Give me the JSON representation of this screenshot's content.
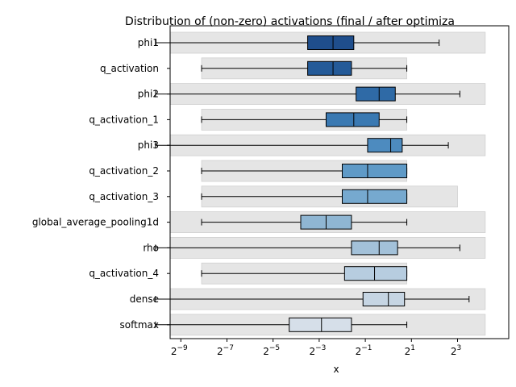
{
  "chart_data": {
    "type": "boxplot",
    "title": "Distribution of (non-zero) activations (final / after optimiza",
    "xlabel": "x",
    "xscale": "log2",
    "xlim_log2": [
      -10.5,
      4.2
    ],
    "x_ticks": [
      {
        "base": "2",
        "exp": "−9",
        "value": -9
      },
      {
        "base": "2",
        "exp": "−7",
        "value": -7
      },
      {
        "base": "2",
        "exp": "−5",
        "value": -5
      },
      {
        "base": "2",
        "exp": "−3",
        "value": -3
      },
      {
        "base": "2",
        "exp": "−1",
        "value": -1
      },
      {
        "base": "2",
        "exp": "1",
        "value": 1
      },
      {
        "base": "2",
        "exp": "3",
        "value": 3
      }
    ],
    "grid": false,
    "legend": "none",
    "colors": {
      "range_band": "#e5e5e5",
      "range_band_edge": "#d0d0d0",
      "whisker": "#000000"
    },
    "series": [
      {
        "name": "phi1",
        "range_log2": [
          -10.1,
          4.2
        ],
        "whisker_low": -10.1,
        "q1": -3.5,
        "median": -2.4,
        "q3": -1.5,
        "whisker_high": 2.2,
        "color": "#1f4e8c"
      },
      {
        "name": "q_activation",
        "range_log2": [
          -8.1,
          0.8
        ],
        "whisker_low": -8.1,
        "q1": -3.5,
        "median": -2.4,
        "q3": -1.6,
        "whisker_high": 0.8,
        "color": "#245a98"
      },
      {
        "name": "phi2",
        "range_log2": [
          -10.1,
          4.2
        ],
        "whisker_low": -10.1,
        "q1": -1.4,
        "median": -0.4,
        "q3": 0.3,
        "whisker_high": 3.1,
        "color": "#2f6aa6"
      },
      {
        "name": "q_activation_1",
        "range_log2": [
          -8.1,
          0.8
        ],
        "whisker_low": -8.1,
        "q1": -2.7,
        "median": -1.5,
        "q3": -0.4,
        "whisker_high": 0.8,
        "color": "#3a79b2"
      },
      {
        "name": "phi3",
        "range_log2": [
          -10.1,
          4.2
        ],
        "whisker_low": -10.1,
        "q1": -0.9,
        "median": 0.1,
        "q3": 0.6,
        "whisker_high": 2.6,
        "color": "#4d8bbf"
      },
      {
        "name": "q_activation_2",
        "range_log2": [
          -8.1,
          0.8
        ],
        "whisker_low": -8.1,
        "q1": -2.0,
        "median": -0.9,
        "q3": 0.8,
        "whisker_high": 0.8,
        "color": "#5f9ac7"
      },
      {
        "name": "q_activation_3",
        "range_log2": [
          -8.1,
          3.0
        ],
        "whisker_low": -8.1,
        "q1": -2.0,
        "median": -0.9,
        "q3": 0.8,
        "whisker_high": 0.8,
        "color": "#76a9cf"
      },
      {
        "name": "global_average_pooling1d",
        "range_log2": [
          -10.1,
          4.2
        ],
        "whisker_low": -8.1,
        "q1": -3.8,
        "median": -2.7,
        "q3": -1.6,
        "whisker_high": 0.8,
        "color": "#8fb6d3"
      },
      {
        "name": "rho",
        "range_log2": [
          -10.1,
          4.2
        ],
        "whisker_low": -10.1,
        "q1": -1.6,
        "median": -0.4,
        "q3": 0.4,
        "whisker_high": 3.1,
        "color": "#a3c1d9"
      },
      {
        "name": "q_activation_4",
        "range_log2": [
          -8.1,
          0.8
        ],
        "whisker_low": -8.1,
        "q1": -1.9,
        "median": -0.6,
        "q3": 0.8,
        "whisker_high": 0.8,
        "color": "#b7cde0"
      },
      {
        "name": "dense",
        "range_log2": [
          -10.1,
          4.2
        ],
        "whisker_low": -10.1,
        "q1": -1.1,
        "median": 0.0,
        "q3": 0.7,
        "whisker_high": 3.5,
        "color": "#c6d5e3"
      },
      {
        "name": "softmax",
        "range_log2": [
          -10.1,
          4.2
        ],
        "whisker_low": -10.1,
        "q1": -4.3,
        "median": -2.9,
        "q3": -1.6,
        "whisker_high": 0.8,
        "color": "#d6dfe9"
      }
    ]
  }
}
